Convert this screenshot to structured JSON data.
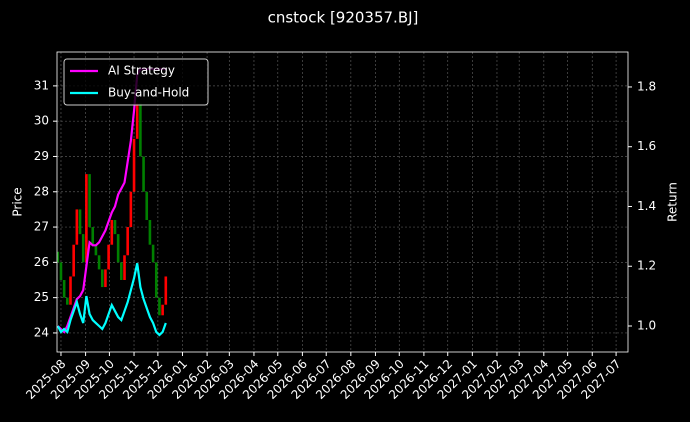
{
  "chart_data": {
    "type": "candlestick",
    "title": "cnstock [920357.BJ]",
    "ylabel": "Price",
    "y2label": "Return",
    "x": [
      "2025-07-28",
      "2025-08-01",
      "2025-08-05",
      "2025-08-09",
      "2025-08-13",
      "2025-08-17",
      "2025-08-21",
      "2025-08-25",
      "2025-08-29",
      "2025-09-02",
      "2025-09-06",
      "2025-09-10",
      "2025-09-14",
      "2025-09-18",
      "2025-09-22",
      "2025-09-26",
      "2025-09-30",
      "2025-10-04",
      "2025-10-08",
      "2025-10-12",
      "2025-10-16",
      "2025-10-20",
      "2025-10-24",
      "2025-10-28",
      "2025-11-01",
      "2025-11-05",
      "2025-11-09",
      "2025-11-13",
      "2025-11-17",
      "2025-11-21",
      "2025-11-25",
      "2025-11-29",
      "2025-12-03",
      "2025-12-07",
      "2025-12-11"
    ],
    "open": [
      26.3,
      26.0,
      25.5,
      25.0,
      24.8,
      25.6,
      26.5,
      27.5,
      26.8,
      26.0,
      28.5,
      27.0,
      26.5,
      26.2,
      25.8,
      25.3,
      25.8,
      26.5,
      27.2,
      26.8,
      26.0,
      25.5,
      26.2,
      27.0,
      28.0,
      29.5,
      30.5,
      29.0,
      28.0,
      27.2,
      26.5,
      26.0,
      25.0,
      24.5,
      24.8
    ],
    "close": [
      26.0,
      25.5,
      25.0,
      24.8,
      25.6,
      26.5,
      27.5,
      26.8,
      26.0,
      28.5,
      27.0,
      26.5,
      26.2,
      25.8,
      25.3,
      25.8,
      26.5,
      27.2,
      26.8,
      26.0,
      25.5,
      26.2,
      27.0,
      28.0,
      29.5,
      30.5,
      29.0,
      28.0,
      27.2,
      26.5,
      26.0,
      25.0,
      24.5,
      24.8,
      25.6
    ],
    "up_color": "#ff0000",
    "down_color": "#008000",
    "series": [
      {
        "name": "AI Strategy",
        "color": "#ff00ff",
        "axis": "y2",
        "values": [
          1.0,
          0.99,
          0.98,
          1.0,
          1.03,
          1.06,
          1.09,
          1.1,
          1.12,
          1.2,
          1.28,
          1.27,
          1.27,
          1.28,
          1.3,
          1.32,
          1.35,
          1.38,
          1.4,
          1.44,
          1.46,
          1.48,
          1.55,
          1.62,
          1.72,
          1.84,
          1.86,
          1.86,
          1.86,
          1.86,
          1.86,
          1.86,
          1.86,
          1.86,
          1.86
        ]
      },
      {
        "name": "Buy-and-Hold",
        "color": "#00ffff",
        "axis": "y2",
        "values": [
          1.0,
          0.98,
          0.99,
          0.98,
          1.02,
          1.05,
          1.08,
          1.04,
          1.01,
          1.1,
          1.04,
          1.02,
          1.01,
          1.0,
          0.99,
          1.01,
          1.04,
          1.07,
          1.05,
          1.03,
          1.02,
          1.05,
          1.08,
          1.12,
          1.16,
          1.21,
          1.13,
          1.09,
          1.06,
          1.03,
          1.01,
          0.98,
          0.97,
          0.98,
          1.01
        ]
      }
    ],
    "xlim": [
      "2025-07-27",
      "2027-07-16"
    ],
    "xticks": [
      {
        "value": "2025-08-01",
        "label": "2025-08"
      },
      {
        "value": "2025-09-01",
        "label": "2025-09"
      },
      {
        "value": "2025-10-01",
        "label": "2025-10"
      },
      {
        "value": "2025-11-01",
        "label": "2025-11"
      },
      {
        "value": "2025-12-01",
        "label": "2025-12"
      },
      {
        "value": "2026-01-01",
        "label": "2026-01"
      },
      {
        "value": "2026-02-01",
        "label": "2026-02"
      },
      {
        "value": "2026-03-01",
        "label": "2026-03"
      },
      {
        "value": "2026-04-01",
        "label": "2026-04"
      },
      {
        "value": "2026-05-01",
        "label": "2026-05"
      },
      {
        "value": "2026-06-01",
        "label": "2026-06"
      },
      {
        "value": "2026-07-01",
        "label": "2026-07"
      },
      {
        "value": "2026-08-01",
        "label": "2026-08"
      },
      {
        "value": "2026-09-01",
        "label": "2026-09"
      },
      {
        "value": "2026-10-01",
        "label": "2026-10"
      },
      {
        "value": "2026-11-01",
        "label": "2026-11"
      },
      {
        "value": "2026-12-01",
        "label": "2026-12"
      },
      {
        "value": "2027-01-01",
        "label": "2027-01"
      },
      {
        "value": "2027-02-01",
        "label": "2027-02"
      },
      {
        "value": "2027-03-01",
        "label": "2027-03"
      },
      {
        "value": "2027-04-01",
        "label": "2027-04"
      },
      {
        "value": "2027-05-01",
        "label": "2027-05"
      },
      {
        "value": "2027-06-01",
        "label": "2027-06"
      },
      {
        "value": "2027-07-01",
        "label": "2027-07"
      }
    ],
    "ylim": [
      23.46,
      31.96
    ],
    "yticks": [
      24,
      25,
      26,
      27,
      28,
      29,
      30,
      31
    ],
    "y2lim": [
      0.913,
      1.917
    ],
    "y2ticks": [
      {
        "value": 1.0,
        "label": "1.0"
      },
      1.2,
      1.4,
      1.6,
      1.8
    ],
    "grid": true,
    "legend": "upper left"
  }
}
